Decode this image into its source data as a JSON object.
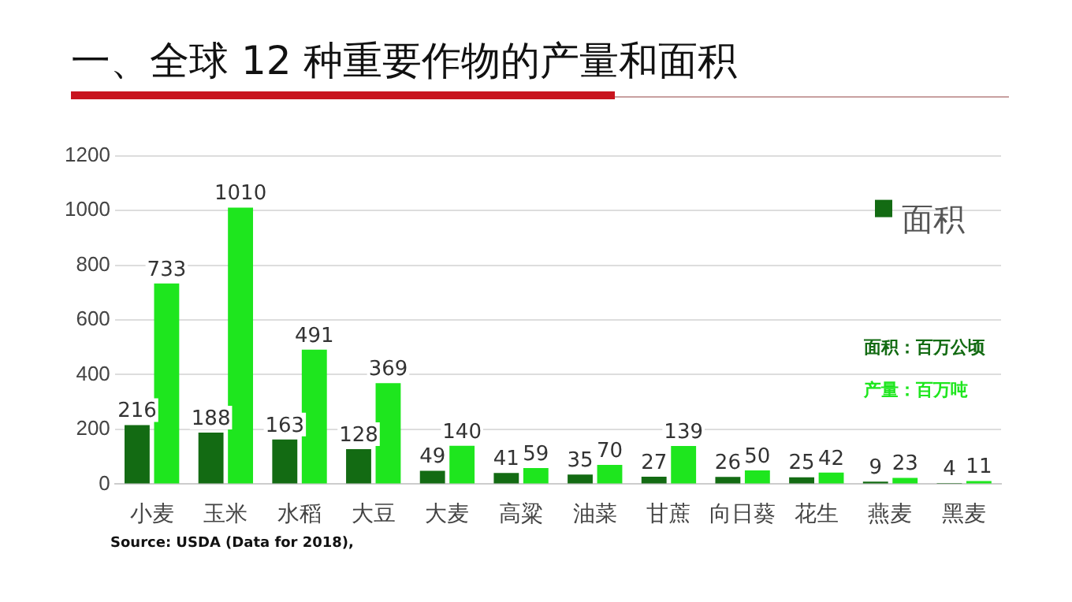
{
  "chart_data": {
    "type": "bar",
    "title": "一、全球 12 种重要作物的产量和面积",
    "categories": [
      "小麦",
      "玉米",
      "水稻",
      "大豆",
      "大麦",
      "高粱",
      "油菜",
      "甘蔗",
      "向日葵",
      "花生",
      "燕麦",
      "黑麦"
    ],
    "series": [
      {
        "name": "面积",
        "color": "#136b13",
        "values": [
          216,
          188,
          163,
          128,
          49,
          41,
          35,
          27,
          26,
          25,
          9,
          4
        ]
      },
      {
        "color": "#1ee61e",
        "values": [
          733,
          1010,
          491,
          369,
          140,
          59,
          70,
          139,
          50,
          42,
          23,
          11
        ]
      }
    ],
    "ylim": [
      0,
      1200
    ],
    "yticks": [
      0,
      200,
      400,
      600,
      800,
      1000,
      1200
    ],
    "grid": "y",
    "legend": "right",
    "data_labels": true,
    "annotations": [
      "面积：百万公顷",
      "产量：百万吨",
      "Source: USDA (Data for 2018),"
    ]
  }
}
